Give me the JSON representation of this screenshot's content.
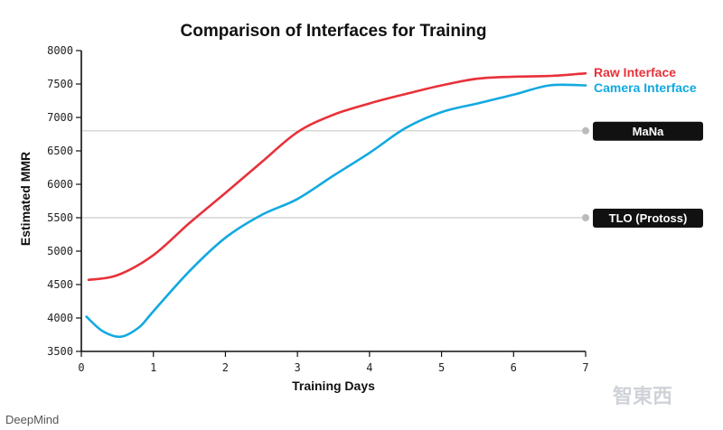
{
  "chart_data": {
    "type": "line",
    "title": "Comparison of Interfaces for Training",
    "xlabel": "Training Days",
    "ylabel": "Estimated MMR",
    "xlim": [
      0,
      7
    ],
    "ylim": [
      3500,
      8000
    ],
    "xticks": [
      0,
      1,
      2,
      3,
      4,
      5,
      6,
      7
    ],
    "yticks": [
      3500,
      4000,
      4500,
      5000,
      5500,
      6000,
      6500,
      7000,
      7500,
      8000
    ],
    "grid": false,
    "legend_position": "top-right",
    "series": [
      {
        "name": "Raw Interface",
        "color": "#e8313a",
        "x": [
          0.1,
          0.5,
          1.0,
          1.5,
          2.0,
          2.5,
          3.0,
          3.5,
          4.0,
          4.5,
          5.0,
          5.5,
          6.0,
          6.5,
          7.0
        ],
        "y": [
          4570,
          4640,
          4940,
          5420,
          5870,
          6330,
          6780,
          7040,
          7210,
          7350,
          7480,
          7580,
          7610,
          7620,
          7660
        ]
      },
      {
        "name": "Camera Interface",
        "color": "#12a9e0",
        "x": [
          0.07,
          0.3,
          0.55,
          0.8,
          1.0,
          1.5,
          2.0,
          2.5,
          3.0,
          3.5,
          4.0,
          4.5,
          5.0,
          5.5,
          6.0,
          6.5,
          7.0
        ],
        "y": [
          4020,
          3800,
          3720,
          3860,
          4100,
          4700,
          5200,
          5540,
          5780,
          6130,
          6470,
          6840,
          7080,
          7210,
          7340,
          7480,
          7480
        ]
      }
    ],
    "reference_lines": [
      {
        "label": "MaNa",
        "value": 6800
      },
      {
        "label": "TLO (Protoss)",
        "value": 5500
      }
    ]
  },
  "credit": "DeepMind",
  "watermark": "智東西",
  "colors": {
    "raw": "#e8313a",
    "camera": "#12a9e0",
    "reference_line": "#cccccc",
    "reference_box": "#111111"
  }
}
